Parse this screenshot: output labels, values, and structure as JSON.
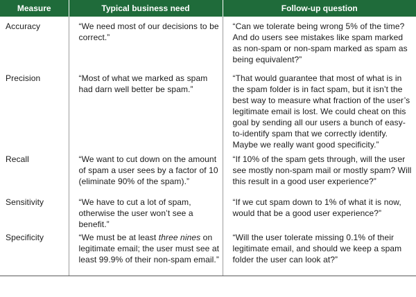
{
  "headers": {
    "measure": "Measure",
    "need": "Typical business need",
    "question": "Follow-up question"
  },
  "rows": [
    {
      "measure": "Accuracy",
      "need": "“We need most of our decisions to be correct.”",
      "question": "“Can we tolerate being wrong 5% of the time? And do users see mistakes like spam marked as non-spam or non-spam marked as spam as being equivalent?”"
    },
    {
      "measure": "Precision",
      "need": "“Most of what we marked as spam had darn well better be spam.”",
      "question": "“That would guarantee that most of what is in the spam folder is in fact spam, but it isn’t the best way to measure what fraction of the user’s legitimate email is lost. We could cheat on this goal by sending all our users a bunch of easy-to-identify spam that we correctly identify. Maybe we really want good specificity.”"
    },
    {
      "measure": "Recall",
      "need": "“We want to cut down on the amount of spam a user sees by a factor of 10 (eliminate 90% of the spam).”",
      "question": "“If 10% of the spam gets through, will the user see mostly non-spam mail or mostly spam? Will this result in a good user experience?”"
    },
    {
      "measure": "Sensitivity",
      "need": "“We have to cut a lot of spam, otherwise the user won’t see a benefit.”",
      "question": "“If we cut spam down to 1% of what it is now, would that be a good user experience?”"
    },
    {
      "measure": "Specificity",
      "need_parts": {
        "before": "“We must be at least ",
        "emphasis": "three nines",
        "after": " on legitimate email; the user must see at least 99.9% of their non-spam email.”"
      },
      "question": "“Will the user tolerate missing 0.1% of their legitimate email, and should we keep a spam folder the user can look at?”"
    }
  ]
}
